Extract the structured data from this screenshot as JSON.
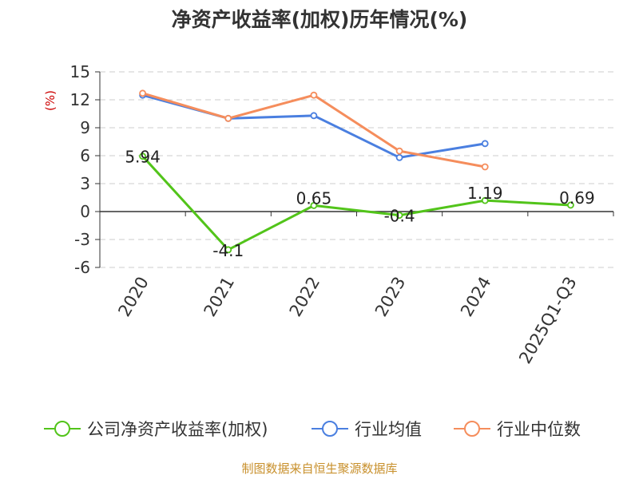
{
  "chart_data": {
    "type": "line",
    "title": "净资产收益率(加权)历年情况(%)",
    "ylabel": "(%)",
    "categories": [
      "2020",
      "2021",
      "2022",
      "2023",
      "2024",
      "2025Q1-Q3"
    ],
    "yticks": [
      15,
      12,
      9,
      6,
      3,
      0,
      -3,
      -6
    ],
    "ylim": [
      -6,
      15
    ],
    "grid": true,
    "series": [
      {
        "name": "公司净资产收益率(加权)",
        "color": "#52c41a",
        "values": [
          5.94,
          -4.1,
          0.65,
          -0.4,
          1.19,
          0.69
        ],
        "labels": [
          "5.94",
          "-4.1",
          "0.65",
          "-0.4",
          "1.19",
          "0.69"
        ]
      },
      {
        "name": "行业均值",
        "color": "#4a7fe0",
        "values": [
          12.5,
          10.0,
          10.3,
          5.8,
          7.3,
          null
        ]
      },
      {
        "name": "行业中位数",
        "color": "#f58d5c",
        "values": [
          12.7,
          10.0,
          12.5,
          6.5,
          4.8,
          null
        ]
      }
    ],
    "legend_position": "bottom",
    "source": "制图数据来自恒生聚源数据库"
  }
}
